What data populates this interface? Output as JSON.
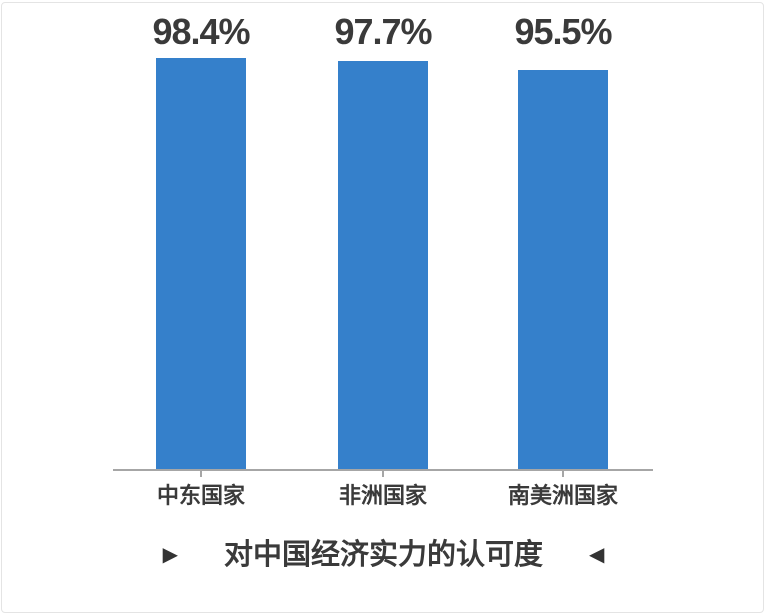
{
  "chart_data": {
    "type": "bar",
    "title": "对中国经济实力的认可度",
    "title_marks": {
      "left": "▶",
      "right": "◀"
    },
    "categories": [
      "中东国家",
      "非洲国家",
      "南美洲国家"
    ],
    "values": [
      98.4,
      97.7,
      95.5
    ],
    "value_labels": [
      "98.4%",
      "97.7%",
      "95.5%"
    ],
    "unit": "%",
    "xlabel": "",
    "ylabel": "",
    "ylim": [
      0,
      112
    ],
    "grid": false,
    "legend": "none",
    "label_position": "fixed-top-row",
    "colors": {
      "bar": "#3580CB",
      "axis": "#A6A6A6",
      "text": "#3A3A3A"
    }
  }
}
